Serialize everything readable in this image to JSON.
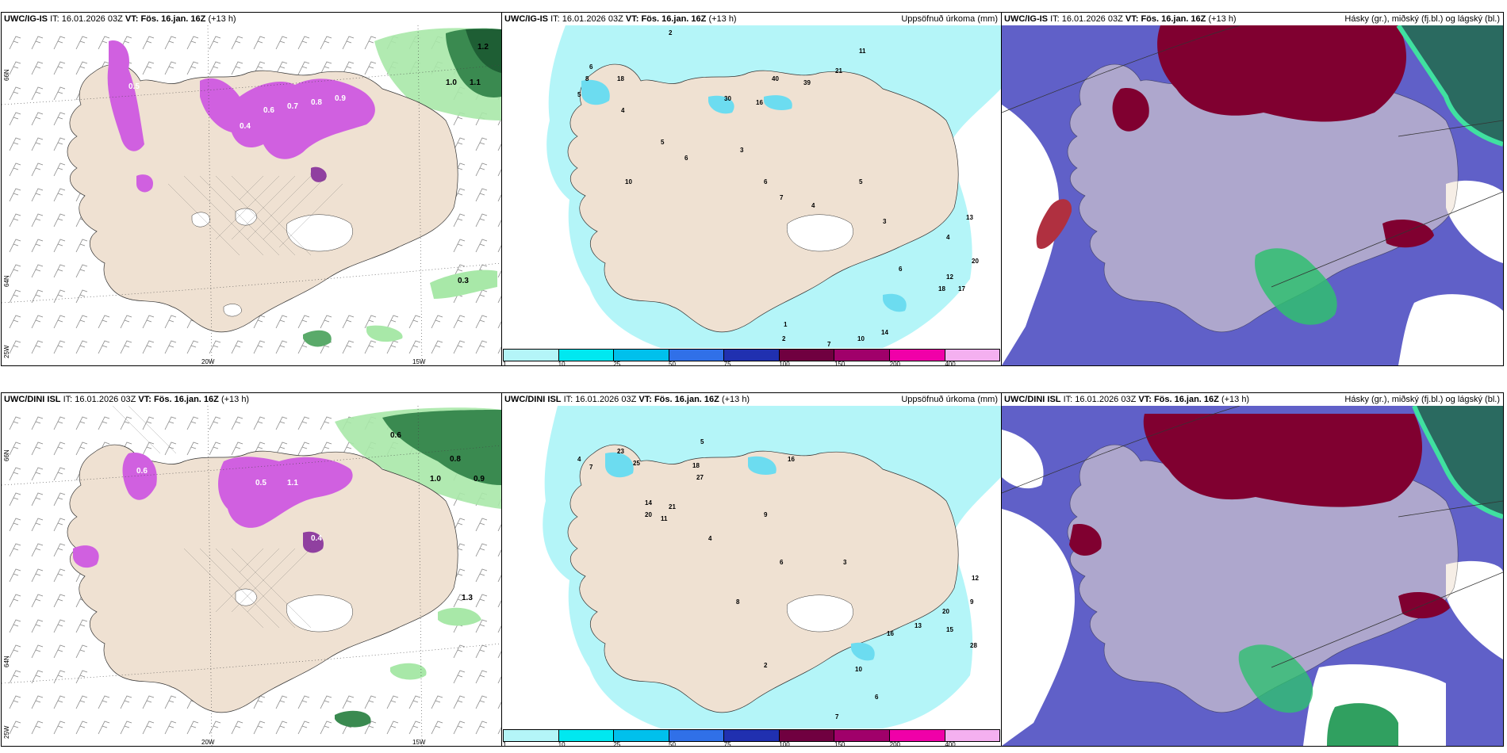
{
  "rows": [
    {
      "model": "UWC/IG-IS",
      "it_label": "IT:",
      "it_value": "16.01.2026 03Z",
      "vt_label": "VT:",
      "vt_value": "Fös. 16.jan. 16Z",
      "lead": "(+13 h)"
    },
    {
      "model": "UWC/DINI ISL",
      "it_label": "IT:",
      "it_value": "16.01.2026 03Z",
      "vt_label": "VT:",
      "vt_value": "Fös. 16.jan. 16Z",
      "lead": "(+13 h)"
    }
  ],
  "panel_titles": {
    "precip": "Uppsöfnuð úrkoma (mm)",
    "clouds": "Hásky (gr.), miðský (fj.bl.) og lágský (bl.)"
  },
  "axis_labels": {
    "lon_20": "20W",
    "lon_15": "15W",
    "lat_66": "66N",
    "lat_64": "64N",
    "lon_25": "25W"
  },
  "colorbar": {
    "ticks": [
      "1",
      "10",
      "25",
      "50",
      "75",
      "100",
      "150",
      "200",
      "400"
    ],
    "colors": [
      "#b4f5f8",
      "#00e8f0",
      "#00c0ec",
      "#3070e8",
      "#2030b0",
      "#700040",
      "#a0006a",
      "#f000a8",
      "#f4b0f0"
    ]
  },
  "colors": {
    "land": "#efe1d2",
    "precip_light": "#b4f5f8",
    "precip_mid": "#6cdcf0",
    "snow": "#d060e0",
    "green_light": "#a8e8a8",
    "green_dark": "#207040",
    "high_cloud": "#800030",
    "mid_cloud": "#6060c8",
    "low_cloud_green": "#30c070"
  },
  "precip_numbers_top": [
    "2",
    "6",
    "8",
    "5",
    "18",
    "30",
    "4",
    "40",
    "39",
    "21",
    "16",
    "5",
    "6",
    "3",
    "10",
    "6",
    "7",
    "4",
    "5",
    "3",
    "13",
    "4",
    "6",
    "12",
    "20",
    "18",
    "17",
    "14",
    "10",
    "1",
    "2",
    "7",
    "11"
  ],
  "precip_numbers_bottom": [
    "5",
    "4",
    "7",
    "23",
    "25",
    "18",
    "27",
    "14",
    "20",
    "16",
    "21",
    "11",
    "4",
    "9",
    "6",
    "8",
    "3",
    "12",
    "20",
    "15",
    "16",
    "13",
    "28",
    "10",
    "6",
    "2",
    "9",
    "7"
  ],
  "snow_numbers_top": [
    "0.6",
    "0.7",
    "0.8",
    "0.9",
    "0.5",
    "0.4",
    "1.0",
    "1.1",
    "1.2",
    "0.3"
  ],
  "snow_numbers_bottom": [
    "0.6",
    "0.5",
    "0.8",
    "1.0",
    "0.9",
    "0.4",
    "1.1",
    "1.3"
  ]
}
